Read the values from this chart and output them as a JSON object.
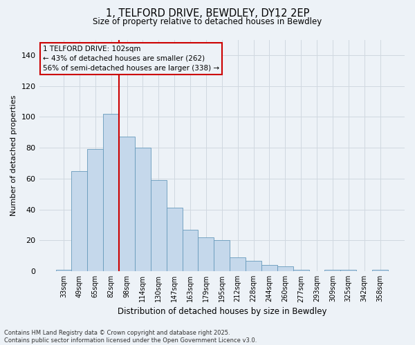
{
  "title_line1": "1, TELFORD DRIVE, BEWDLEY, DY12 2EP",
  "title_line2": "Size of property relative to detached houses in Bewdley",
  "xlabel": "Distribution of detached houses by size in Bewdley",
  "ylabel": "Number of detached properties",
  "categories": [
    "33sqm",
    "49sqm",
    "65sqm",
    "82sqm",
    "98sqm",
    "114sqm",
    "130sqm",
    "147sqm",
    "163sqm",
    "179sqm",
    "195sqm",
    "212sqm",
    "228sqm",
    "244sqm",
    "260sqm",
    "277sqm",
    "293sqm",
    "309sqm",
    "325sqm",
    "342sqm",
    "358sqm"
  ],
  "values": [
    1,
    65,
    79,
    102,
    87,
    80,
    59,
    41,
    27,
    22,
    20,
    9,
    7,
    4,
    3,
    1,
    0,
    1,
    1,
    0,
    1
  ],
  "bar_color": "#c5d8eb",
  "bar_edge_color": "#6699bb",
  "grid_color": "#d0d8e0",
  "bg_color": "#edf2f7",
  "vline_color": "#cc0000",
  "vline_bar_index": 4,
  "annotation_text": "1 TELFORD DRIVE: 102sqm\n← 43% of detached houses are smaller (262)\n56% of semi-detached houses are larger (338) →",
  "annotation_box_edgecolor": "#cc0000",
  "footer_text": "Contains HM Land Registry data © Crown copyright and database right 2025.\nContains public sector information licensed under the Open Government Licence v3.0.",
  "ylim": [
    0,
    150
  ],
  "yticks": [
    0,
    20,
    40,
    60,
    80,
    100,
    120,
    140
  ]
}
